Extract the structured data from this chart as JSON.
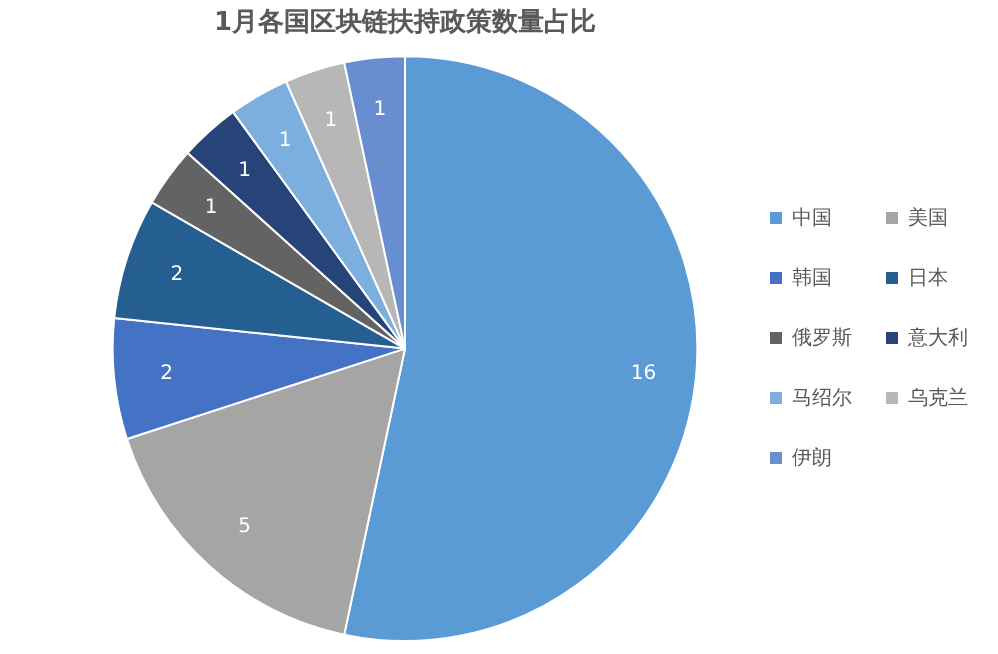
{
  "chart_data": {
    "type": "pie",
    "title": "1月各国区块链扶持政策数量占比",
    "categories": [
      "中国",
      "美国",
      "韩国",
      "日本",
      "俄罗斯",
      "意大利",
      "马绍尔",
      "乌克兰",
      "伊朗"
    ],
    "values": [
      16,
      5,
      2,
      2,
      1,
      1,
      1,
      1,
      1
    ],
    "colors": [
      "#5b9bd5",
      "#a5a5a5",
      "#4472c4",
      "#255e91",
      "#636363",
      "#264478",
      "#7cafdd",
      "#b7b7b7",
      "#698ed0"
    ],
    "data_labels": true,
    "legend": "right"
  }
}
